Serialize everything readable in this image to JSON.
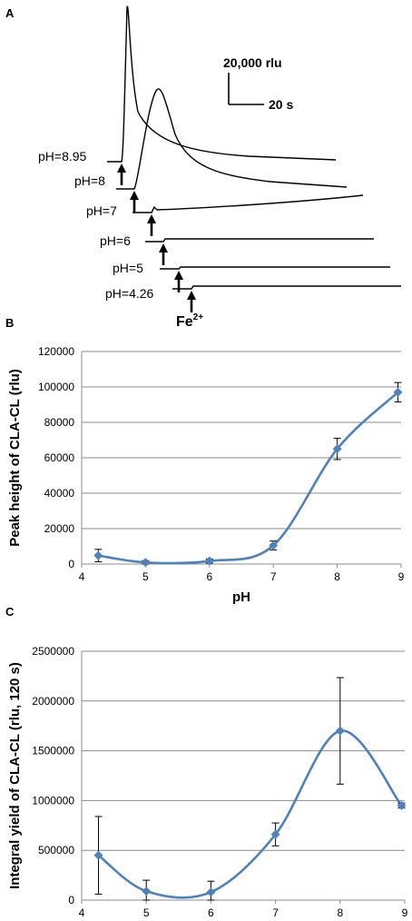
{
  "panel_a": {
    "letter": "A",
    "scale_y_label": "20,000 rlu",
    "scale_x_label": "20 s",
    "trigger_label": "Fe",
    "trigger_superscript": "2+",
    "traces": [
      {
        "label": "pH=8.95",
        "peak": 97000
      },
      {
        "label": "pH=8",
        "peak": 65000
      },
      {
        "label": "pH=7",
        "peak": 10500
      },
      {
        "label": "pH=6",
        "peak": 1700
      },
      {
        "label": "pH=5",
        "peak": 900
      },
      {
        "label": "pH=4.26",
        "peak": 4800
      }
    ]
  },
  "chart_data": [
    {
      "panel": "B",
      "type": "line",
      "xlabel": "pH",
      "ylabel": "Peak height of CLA-CL (rlu)",
      "xlim": [
        4,
        9
      ],
      "ylim": [
        0,
        120000
      ],
      "x_ticks": [
        "4",
        "5",
        "6",
        "7",
        "8",
        "9"
      ],
      "y_ticks": [
        "0",
        "20000",
        "40000",
        "60000",
        "80000",
        "100000",
        "120000"
      ],
      "grid": true,
      "color": "#4f81bd",
      "x": [
        4.26,
        5,
        6,
        7,
        8,
        8.95
      ],
      "y": [
        4800,
        900,
        1700,
        10500,
        65000,
        97000
      ],
      "err": [
        3500,
        1000,
        1200,
        2500,
        6000,
        5500
      ]
    },
    {
      "panel": "C",
      "type": "line",
      "xlabel": "pH",
      "ylabel": "Integral yield of CLA-CL (rlu, 120 s)",
      "xlim": [
        4,
        9
      ],
      "ylim": [
        0,
        2500000
      ],
      "x_ticks": [
        "4",
        "5",
        "6",
        "7",
        "8",
        "9"
      ],
      "y_ticks": [
        "0",
        "500000",
        "1000000",
        "1500000",
        "2000000",
        "2500000"
      ],
      "grid": true,
      "color": "#4f81bd",
      "x": [
        4.26,
        5,
        6,
        7,
        8,
        8.95
      ],
      "y": [
        450000,
        90000,
        80000,
        660000,
        1700000,
        950000
      ],
      "err": [
        390000,
        110000,
        110000,
        115000,
        535000,
        25000
      ]
    }
  ]
}
